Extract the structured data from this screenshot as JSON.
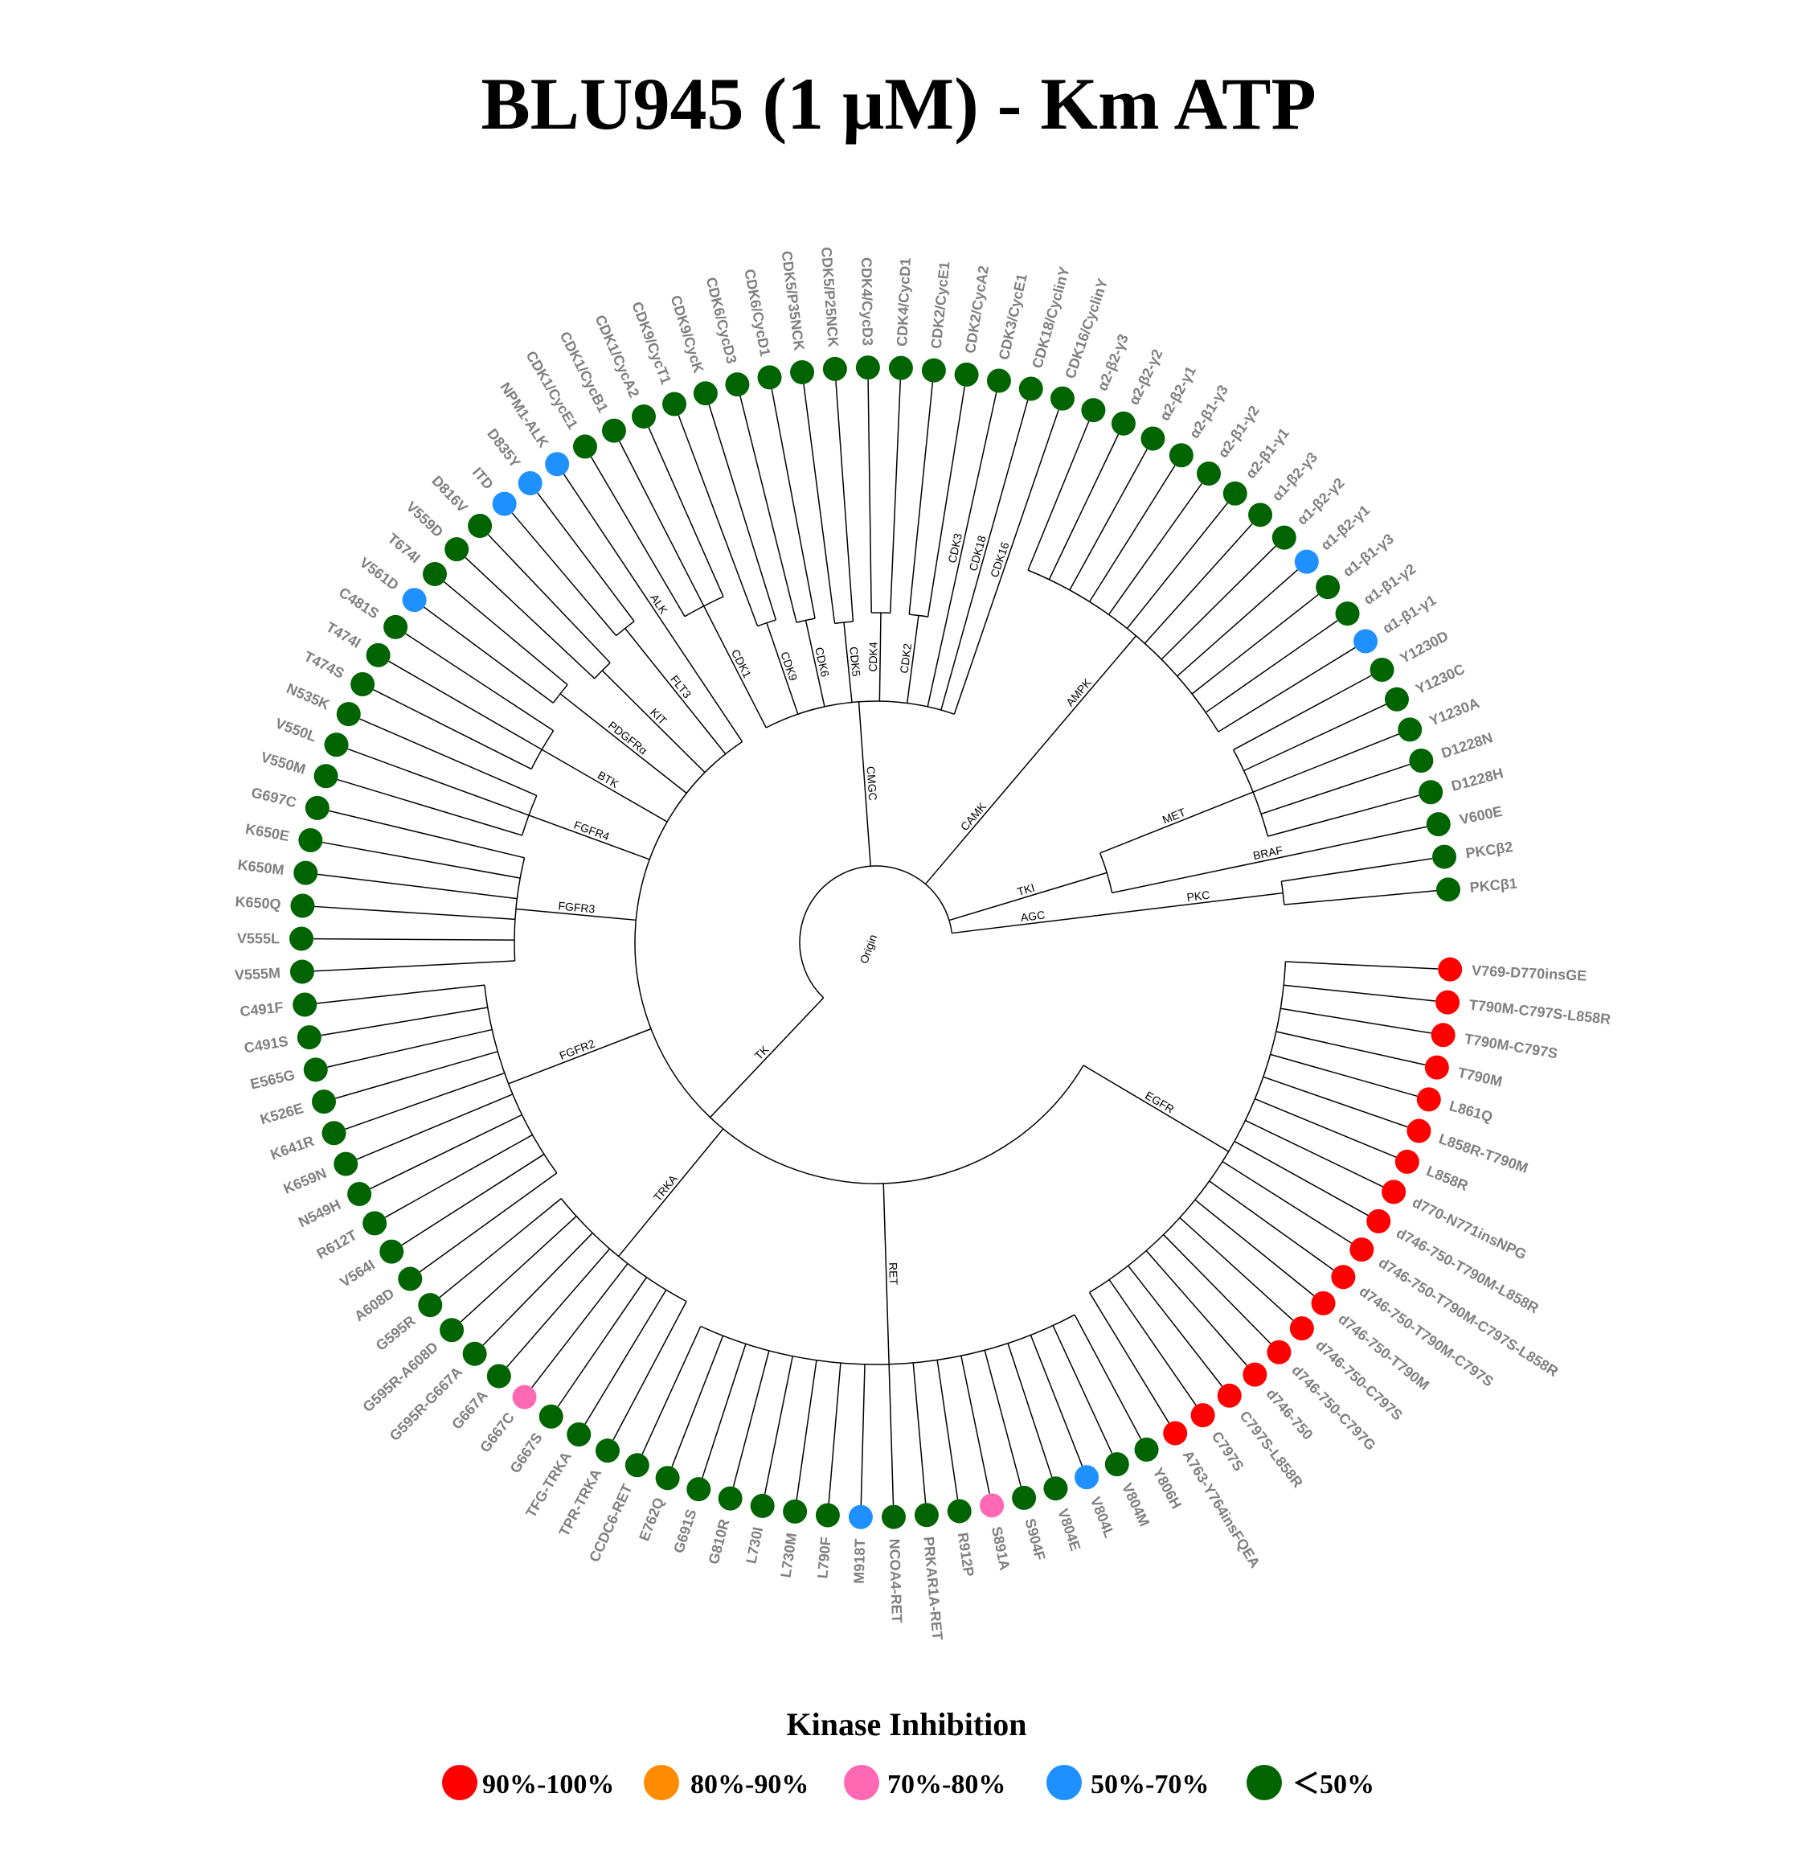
{
  "title": "BLU945 (1 μM) - Km ATP",
  "legend": {
    "title": "Kinase Inhibition",
    "items": [
      {
        "key": "90-100",
        "label": "90%-100%",
        "color": "#ff0000"
      },
      {
        "key": "80-90",
        "label": "80%-90%",
        "color": "#ff8c00"
      },
      {
        "key": "70-80",
        "label": "70%-80%",
        "color": "#ff69b4"
      },
      {
        "key": "50-70",
        "label": "50%-70%",
        "color": "#1e90ff"
      },
      {
        "key": "lt50",
        "label": "＜50%",
        "color": "#006400"
      }
    ]
  },
  "tree": {
    "name": "Origin",
    "children": [
      {
        "name": "TK",
        "children": [
          {
            "name": "EGFR",
            "leaves": [
              {
                "label": "V769-D770insGE",
                "inhibition": "90-100"
              },
              {
                "label": "T790M-C797S-L858R",
                "inhibition": "90-100"
              },
              {
                "label": "T790M-C797S",
                "inhibition": "90-100"
              },
              {
                "label": "T790M",
                "inhibition": "90-100"
              },
              {
                "label": "L861Q",
                "inhibition": "90-100"
              },
              {
                "label": "L858R-T790M",
                "inhibition": "90-100"
              },
              {
                "label": "L858R",
                "inhibition": "90-100"
              },
              {
                "label": "d770-N771insNPG",
                "inhibition": "90-100"
              },
              {
                "label": "d746-750-T790M-L858R",
                "inhibition": "90-100"
              },
              {
                "label": "d746-750-T790M-C797S-L858R",
                "inhibition": "90-100"
              },
              {
                "label": "d746-750-T790M-C797S",
                "inhibition": "90-100"
              },
              {
                "label": "d746-750-T790M",
                "inhibition": "90-100"
              },
              {
                "label": "d746-750-C797S",
                "inhibition": "90-100"
              },
              {
                "label": "d746-750-C797G",
                "inhibition": "90-100"
              },
              {
                "label": "d746-750",
                "inhibition": "90-100"
              },
              {
                "label": "C797S-L858R",
                "inhibition": "90-100"
              },
              {
                "label": "C797S",
                "inhibition": "90-100"
              },
              {
                "label": "A763-Y764insFQEA",
                "inhibition": "90-100"
              }
            ]
          },
          {
            "name": "RET",
            "leaves": [
              {
                "label": "Y806H",
                "inhibition": "lt50"
              },
              {
                "label": "V804M",
                "inhibition": "lt50"
              },
              {
                "label": "V804L",
                "inhibition": "50-70"
              },
              {
                "label": "V804E",
                "inhibition": "lt50"
              },
              {
                "label": "S904F",
                "inhibition": "lt50"
              },
              {
                "label": "S891A",
                "inhibition": "70-80"
              },
              {
                "label": "R912P",
                "inhibition": "lt50"
              },
              {
                "label": "PRKAR1A-RET",
                "inhibition": "lt50"
              },
              {
                "label": "NCOA4-RET",
                "inhibition": "lt50"
              },
              {
                "label": "M918T",
                "inhibition": "50-70"
              },
              {
                "label": "L790F",
                "inhibition": "lt50"
              },
              {
                "label": "L730M",
                "inhibition": "lt50"
              },
              {
                "label": "L730I",
                "inhibition": "lt50"
              },
              {
                "label": "G810R",
                "inhibition": "lt50"
              },
              {
                "label": "G691S",
                "inhibition": "lt50"
              },
              {
                "label": "E762Q",
                "inhibition": "lt50"
              },
              {
                "label": "CCDC6-RET",
                "inhibition": "lt50"
              }
            ]
          },
          {
            "name": "TRKA",
            "leaves": [
              {
                "label": "TPR-TRKA",
                "inhibition": "lt50"
              },
              {
                "label": "TFG-TRKA",
                "inhibition": "lt50"
              },
              {
                "label": "G667S",
                "inhibition": "lt50"
              },
              {
                "label": "G667C",
                "inhibition": "70-80"
              },
              {
                "label": "G667A",
                "inhibition": "lt50"
              },
              {
                "label": "G595R-G667A",
                "inhibition": "lt50"
              },
              {
                "label": "G595R-A608D",
                "inhibition": "lt50"
              },
              {
                "label": "G595R",
                "inhibition": "lt50"
              }
            ]
          },
          {
            "name": "FGFR2",
            "leaves": [
              {
                "label": "A608D",
                "inhibition": "lt50"
              },
              {
                "label": "V564I",
                "inhibition": "lt50"
              },
              {
                "label": "R612T",
                "inhibition": "lt50"
              },
              {
                "label": "N549H",
                "inhibition": "lt50"
              },
              {
                "label": "K659N",
                "inhibition": "lt50"
              },
              {
                "label": "K641R",
                "inhibition": "lt50"
              },
              {
                "label": "K526E",
                "inhibition": "lt50"
              },
              {
                "label": "E565G",
                "inhibition": "lt50"
              },
              {
                "label": "C491S",
                "inhibition": "lt50"
              },
              {
                "label": "C491F",
                "inhibition": "lt50"
              }
            ]
          },
          {
            "name": "FGFR3",
            "leaves": [
              {
                "label": "V555M",
                "inhibition": "lt50"
              },
              {
                "label": "V555L",
                "inhibition": "lt50"
              },
              {
                "label": "K650Q",
                "inhibition": "lt50"
              },
              {
                "label": "K650M",
                "inhibition": "lt50"
              },
              {
                "label": "K650E",
                "inhibition": "lt50"
              },
              {
                "label": "G697C",
                "inhibition": "lt50"
              }
            ]
          },
          {
            "name": "FGFR4",
            "leaves": [
              {
                "label": "V550M",
                "inhibition": "lt50"
              },
              {
                "label": "V550L",
                "inhibition": "lt50"
              },
              {
                "label": "N535K",
                "inhibition": "lt50"
              }
            ]
          },
          {
            "name": "BTK",
            "leaves": [
              {
                "label": "T474S",
                "inhibition": "lt50"
              },
              {
                "label": "T474I",
                "inhibition": "lt50"
              },
              {
                "label": "C481S",
                "inhibition": "lt50"
              }
            ]
          },
          {
            "name": "PDGFRα",
            "leaves": [
              {
                "label": "V561D",
                "inhibition": "50-70"
              },
              {
                "label": "T674I",
                "inhibition": "lt50"
              }
            ]
          },
          {
            "name": "KIT",
            "leaves": [
              {
                "label": "V559D",
                "inhibition": "lt50"
              },
              {
                "label": "D816V",
                "inhibition": "lt50"
              }
            ]
          },
          {
            "name": "FLT3",
            "leaves": [
              {
                "label": "ITD",
                "inhibition": "50-70"
              },
              {
                "label": "D835Y",
                "inhibition": "50-70"
              }
            ]
          },
          {
            "name": "ALK",
            "leaves": [
              {
                "label": "NPM1-ALK",
                "inhibition": "50-70"
              }
            ]
          }
        ]
      },
      {
        "name": "CMGC",
        "children": [
          {
            "name": "CDK1",
            "leaves": [
              {
                "label": "CDK1/CycE1",
                "inhibition": "lt50"
              },
              {
                "label": "CDK1/CycB1",
                "inhibition": "lt50"
              },
              {
                "label": "CDK1/CycA2",
                "inhibition": "lt50"
              }
            ]
          },
          {
            "name": "CDK9",
            "leaves": [
              {
                "label": "CDK9/CycT1",
                "inhibition": "lt50"
              },
              {
                "label": "CDK9/CycK",
                "inhibition": "lt50"
              }
            ]
          },
          {
            "name": "CDK6",
            "leaves": [
              {
                "label": "CDK6/CycD3",
                "inhibition": "lt50"
              },
              {
                "label": "CDK6/CycD1",
                "inhibition": "lt50"
              }
            ]
          },
          {
            "name": "CDK5",
            "leaves": [
              {
                "label": "CDK5/P35NCK",
                "inhibition": "lt50"
              },
              {
                "label": "CDK5/P25NCK",
                "inhibition": "lt50"
              }
            ]
          },
          {
            "name": "CDK4",
            "leaves": [
              {
                "label": "CDK4/CycD3",
                "inhibition": "lt50"
              },
              {
                "label": "CDK4/CycD1",
                "inhibition": "lt50"
              }
            ]
          },
          {
            "name": "CDK2",
            "leaves": [
              {
                "label": "CDK2/CycE1",
                "inhibition": "lt50"
              },
              {
                "label": "CDK2/CycA2",
                "inhibition": "lt50"
              }
            ]
          },
          {
            "name": "CDK3",
            "leaves": [
              {
                "label": "CDK3/CycE1",
                "inhibition": "lt50"
              }
            ]
          },
          {
            "name": "CDK18",
            "leaves": [
              {
                "label": "CDK18/CyclinY",
                "inhibition": "lt50"
              }
            ]
          },
          {
            "name": "CDK16",
            "leaves": [
              {
                "label": "CDK16/CyclinY",
                "inhibition": "lt50"
              }
            ]
          }
        ]
      },
      {
        "name": "CAMK",
        "children": [
          {
            "name": "AMPK",
            "leaves": [
              {
                "label": "α2-β2-γ3",
                "inhibition": "lt50"
              },
              {
                "label": "α2-β2-γ2",
                "inhibition": "lt50"
              },
              {
                "label": "α2-β2-γ1",
                "inhibition": "lt50"
              },
              {
                "label": "α2-β1-γ3",
                "inhibition": "lt50"
              },
              {
                "label": "α2-β1-γ2",
                "inhibition": "lt50"
              },
              {
                "label": "α2-β1-γ1",
                "inhibition": "lt50"
              },
              {
                "label": "α1-β2-γ3",
                "inhibition": "lt50"
              },
              {
                "label": "α1-β2-γ2",
                "inhibition": "lt50"
              },
              {
                "label": "α1-β2-γ1",
                "inhibition": "50-70"
              },
              {
                "label": "α1-β1-γ3",
                "inhibition": "lt50"
              },
              {
                "label": "α1-β1-γ2",
                "inhibition": "lt50"
              },
              {
                "label": "α1-β1-γ1",
                "inhibition": "50-70"
              }
            ]
          }
        ]
      },
      {
        "name": "TKI",
        "children": [
          {
            "name": "MET",
            "leaves": [
              {
                "label": "Y1230D",
                "inhibition": "lt50"
              },
              {
                "label": "Y1230C",
                "inhibition": "lt50"
              },
              {
                "label": "Y1230A",
                "inhibition": "lt50"
              },
              {
                "label": "D1228N",
                "inhibition": "lt50"
              },
              {
                "label": "D1228H",
                "inhibition": "lt50"
              }
            ]
          },
          {
            "name": "BRAF",
            "leaves": [
              {
                "label": "V600E",
                "inhibition": "lt50"
              }
            ]
          }
        ]
      },
      {
        "name": "AGC",
        "children": [
          {
            "name": "PKC",
            "leaves": [
              {
                "label": "PKCβ2",
                "inhibition": "lt50"
              },
              {
                "label": "PKCβ1",
                "inhibition": "lt50"
              }
            ]
          }
        ]
      }
    ]
  }
}
